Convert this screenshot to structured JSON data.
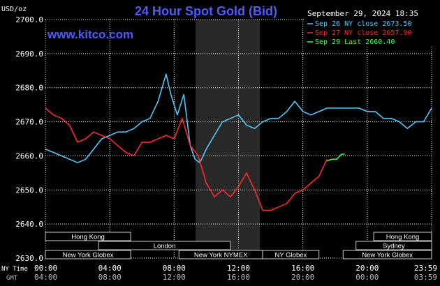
{
  "chart_data": {
    "type": "line",
    "title": "24 Hour Spot Gold (Bid)",
    "watermark": "www.kitco.com",
    "timestamp": "September 29, 2024 18:35",
    "ylabel": "USD/oz",
    "ylim": [
      2630,
      2700
    ],
    "yticks": [
      "2700.0",
      "2690.0",
      "2680.0",
      "2670.0",
      "2660.0",
      "2650.0",
      "2640.0",
      "2630.0"
    ],
    "xlim": [
      0,
      24
    ],
    "ny_time_label": "NY Time",
    "gmt_label": "GMT",
    "ny_ticks": [
      "00:00",
      "04:00",
      "08:00",
      "12:00",
      "16:00",
      "20:00",
      "23:59"
    ],
    "gmt_ticks": [
      "04:00",
      "08:00",
      "12:00",
      "16:00",
      "20:00",
      "00:00",
      "03:59"
    ],
    "colors": {
      "sep26": "#4ec9ff",
      "sep27": "#ff2a2a",
      "sep29": "#33ff33",
      "title": "#4a5cff",
      "grid": "#ffffff",
      "session": "#3a3a3a"
    },
    "legend": {
      "sep26": "Sep 26 NY close 2673.50",
      "sep27": "Sep 27 NY close 2657.90",
      "sep29": "Sep 29 Last 2660.40"
    },
    "shaded_session": [
      9.33,
      13.33
    ],
    "series": [
      {
        "name": "Sep 26 NY close 2673.50",
        "x": [
          0,
          0.5,
          1,
          1.5,
          2,
          2.5,
          3,
          3.5,
          4,
          4.5,
          5,
          5.5,
          6,
          6.5,
          7,
          7.5,
          7.8,
          8.2,
          8.6,
          9,
          9.3,
          9.6,
          10,
          10.5,
          11,
          11.5,
          12,
          12.5,
          13,
          13.5,
          14,
          14.5,
          15,
          15.5,
          16,
          16.5,
          17,
          17.5,
          18,
          18.5,
          19,
          19.5,
          20,
          20.5,
          21,
          21.5,
          22,
          22.5,
          23,
          23.5,
          24
        ],
        "y": [
          2662,
          2661,
          2660,
          2659,
          2658,
          2659,
          2662,
          2665,
          2666,
          2667,
          2667,
          2668,
          2670,
          2671,
          2676,
          2684,
          2678,
          2672,
          2678,
          2663,
          2659,
          2658,
          2662,
          2666,
          2670,
          2671,
          2672,
          2669,
          2668,
          2670,
          2671,
          2671,
          2673,
          2676,
          2673,
          2672,
          2673,
          2674,
          2674,
          2674,
          2674,
          2674,
          2673,
          2673,
          2671,
          2671,
          2670,
          2668,
          2670,
          2670,
          2674
        ]
      },
      {
        "name": "Sep 27 NY close 2657.90",
        "x": [
          0,
          0.5,
          1,
          1.5,
          2,
          2.5,
          3,
          3.5,
          4,
          4.5,
          5,
          5.5,
          6,
          6.5,
          7,
          7.5,
          8,
          8.5,
          9,
          9.5,
          10,
          10.5,
          11,
          11.5,
          12,
          12.5,
          13,
          13.5,
          14,
          14.5,
          15,
          15.5,
          16,
          16.5,
          17,
          17.5
        ],
        "y": [
          2674,
          2672,
          2671,
          2669,
          2664,
          2665,
          2667,
          2666,
          2665,
          2663,
          2661,
          2660,
          2664,
          2664,
          2665,
          2666,
          2665,
          2671,
          2663,
          2660,
          2652,
          2648,
          2650,
          2648,
          2651,
          2655,
          2650,
          2644,
          2644,
          2645,
          2646,
          2649,
          2650,
          2652,
          2654,
          2659
        ]
      },
      {
        "name": "Sep 29 Last 2660.40",
        "x": [
          17.5,
          17.8,
          18.1,
          18.4,
          18.6
        ],
        "y": [
          2658.5,
          2659,
          2659,
          2660.5,
          2660.5
        ]
      }
    ],
    "session_rows": [
      [
        {
          "label": "Hong Kong",
          "start": 0,
          "end": 5.3
        },
        {
          "label": "Hong Kong",
          "start": 20.4,
          "end": 24
        }
      ],
      [
        {
          "label": "London",
          "start": 3.3,
          "end": 11.5
        },
        {
          "label": "Sydney",
          "start": 19.3,
          "end": 24
        }
      ],
      [
        {
          "label": "New York Globex",
          "start": 0,
          "end": 5.3
        },
        {
          "label": "New York NYMEX",
          "start": 8.3,
          "end": 13.5
        },
        {
          "label": "NY Globex",
          "start": 13.5,
          "end": 17
        },
        {
          "label": "New York Globex",
          "start": 18.5,
          "end": 24
        }
      ]
    ]
  }
}
